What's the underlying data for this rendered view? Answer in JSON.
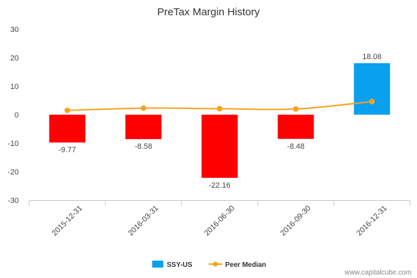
{
  "chart_data": {
    "type": "bar",
    "title": "PreTax Margin History",
    "categories": [
      "2015-12-31",
      "2016-03-31",
      "2016-06-30",
      "2016-09-30",
      "2016-12-31"
    ],
    "series": [
      {
        "name": "SSY-US",
        "type": "bar",
        "values": [
          -9.77,
          -8.58,
          -22.16,
          -8.48,
          18.08
        ],
        "labels": [
          "-9.77",
          "-8.58",
          "-22.16",
          "-8.48",
          "18.08"
        ],
        "color_positive": "#0aa0f0",
        "color_negative": "#ff0000"
      },
      {
        "name": "Peer Median",
        "type": "line",
        "values": [
          1.5,
          2.3,
          2.1,
          2.0,
          4.6
        ],
        "color": "#f7a21b"
      }
    ],
    "ylim": [
      -30,
      30
    ],
    "yticks": [
      30,
      20,
      10,
      0,
      -10,
      -20,
      -30
    ],
    "grid": false,
    "legend": "bottom-center"
  },
  "credit": "www.capitalcube.com"
}
